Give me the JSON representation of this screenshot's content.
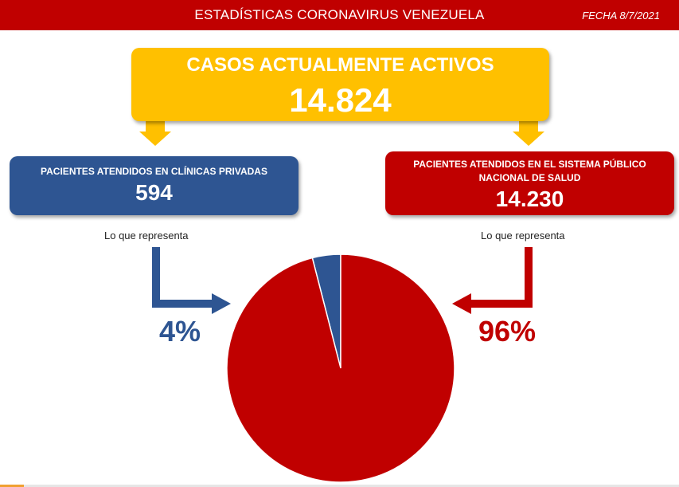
{
  "header": {
    "title": "ESTADÍSTICAS CORONAVIRUS VENEZUELA",
    "date": "FECHA 8/7/2021"
  },
  "main_box": {
    "title": "CASOS ACTUALMENTE ACTIVOS",
    "value": "14.824"
  },
  "left_box": {
    "title": "PACIENTES ATENDIDOS EN CLÍNICAS PRIVADAS",
    "value": "594",
    "represents_label": "Lo que representa",
    "percent_label": "4%"
  },
  "right_box": {
    "title": "PACIENTES ATENDIDOS EN EL SISTEMA PÚBLICO NACIONAL DE SALUD",
    "value": "14.230",
    "represents_label": "Lo que representa",
    "percent_label": "96%"
  },
  "colors": {
    "header": "#c00000",
    "main_box": "#ffc000",
    "private": "#2e5592",
    "public": "#c00000"
  },
  "chart_data": {
    "type": "pie",
    "categories": [
      "PACIENTES ATENDIDOS EN CLÍNICAS PRIVADAS",
      "PACIENTES ATENDIDOS EN EL SISTEMA PÚBLICO NACIONAL DE SALUD"
    ],
    "values": [
      594,
      14230
    ],
    "percent_labels": [
      "4%",
      "96%"
    ],
    "colors": [
      "#2e5592",
      "#c00000"
    ],
    "total": 14824
  }
}
